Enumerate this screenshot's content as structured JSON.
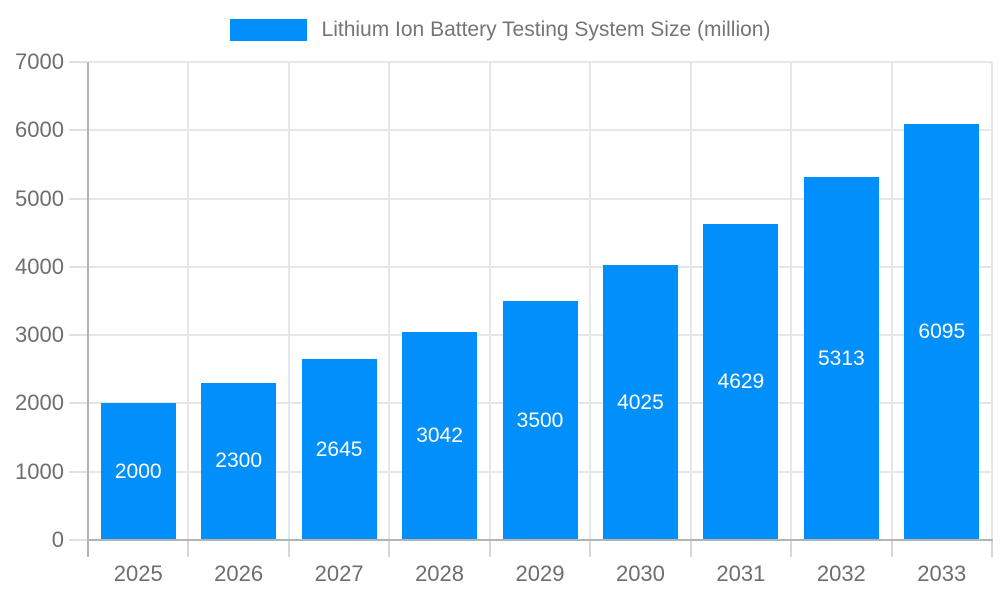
{
  "legend": {
    "series_label": "Lithium Ion Battery Testing System Size (million)"
  },
  "chart_data": {
    "type": "bar",
    "title": "Lithium Ion Battery Testing System Size (million)",
    "categories": [
      "2025",
      "2026",
      "2027",
      "2028",
      "2029",
      "2030",
      "2031",
      "2032",
      "2033"
    ],
    "values": [
      2000,
      2300,
      2645,
      3042,
      3500,
      4025,
      4629,
      5313,
      6095
    ],
    "xlabel": "",
    "ylabel": "",
    "ylim": [
      0,
      7000
    ],
    "y_tick_step": 1000,
    "grid": true,
    "legend_position": "top",
    "data_labels": "inside-center",
    "colors": {
      "bar": "#008FFB",
      "data_label": "#FFFFFF",
      "axis_text": "#6E6E6E",
      "legend_text": "#757575",
      "gridline": "#E7E7E7",
      "axis_line": "#B3B3B3"
    }
  }
}
